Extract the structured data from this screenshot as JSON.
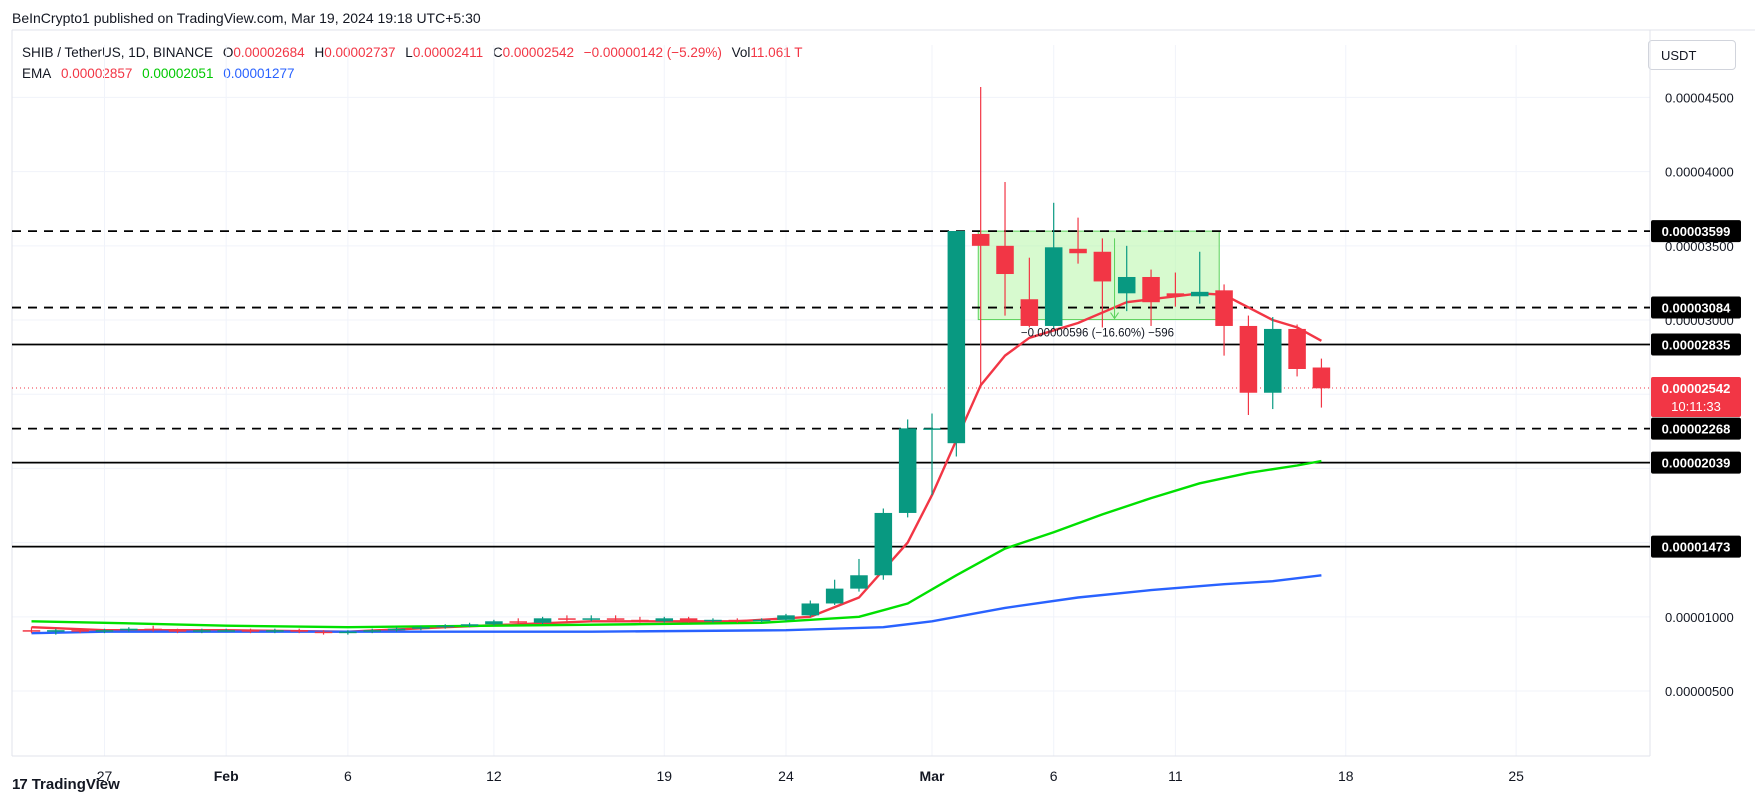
{
  "header": {
    "publisher_line": "BeInCrypto1 published on TradingView.com, Mar 19, 2024 19:18 UTC+5:30"
  },
  "legend": {
    "symbol": "SHIB / TetherUS, 1D, BINANCE",
    "o_label": "O",
    "o_value": "0.00002684",
    "h_label": "H",
    "h_value": "0.00002737",
    "l_label": "L",
    "l_value": "0.00002411",
    "c_label": "C",
    "c_value": "0.00002542",
    "change": "−0.00000142 (−5.29%)",
    "vol_label": "Vol",
    "vol_value": "11.061 T",
    "ema_label": "EMA",
    "ema_values": [
      "0.00002857",
      "0.00002051",
      "0.00001277"
    ]
  },
  "currency_button": "USDT",
  "footer": {
    "brand": "TradingView",
    "logo": "17"
  },
  "colors": {
    "up": "#089981",
    "down": "#f23645",
    "ema_fast": "#f23645",
    "ema_mid": "#00e000",
    "ema_slow": "#2962ff",
    "range_box": "#b6f5a8"
  },
  "chart_data": {
    "type": "candlestick",
    "symbol": "SHIB / TetherUS",
    "interval": "1D",
    "x_ticks": [
      {
        "day": 0,
        "label": "27"
      },
      {
        "day": 5,
        "label": "Feb"
      },
      {
        "day": 10,
        "label": "6"
      },
      {
        "day": 16,
        "label": "12"
      },
      {
        "day": 23,
        "label": "19"
      },
      {
        "day": 28,
        "label": "24"
      },
      {
        "day": 34,
        "label": "Mar"
      },
      {
        "day": 39,
        "label": "6"
      },
      {
        "day": 44,
        "label": "11"
      },
      {
        "day": 51,
        "label": "18"
      },
      {
        "day": 58,
        "label": "25"
      }
    ],
    "y_ticks": [
      5e-06,
      1e-05,
      1.5e-05,
      2e-05,
      2.5e-05,
      3e-05,
      3.5e-05,
      4e-05,
      4.5e-05
    ],
    "y_tick_labels": [
      "0.00000500",
      "0.00001000",
      "0.00001500",
      "0.00002000",
      "0.00002500",
      "0.00003000",
      "0.00003500",
      "0.00004000",
      "0.00004500"
    ],
    "ylim": [
      1.7e-06,
      4.55e-05
    ],
    "xlim": [
      -3.8,
      63.5
    ],
    "candles": [
      {
        "day": -3,
        "o": 9.1e-06,
        "h": 9.3e-06,
        "l": 8.9e-06,
        "c": 9e-06
      },
      {
        "day": -2,
        "o": 9e-06,
        "h": 9.2e-06,
        "l": 8.8e-06,
        "c": 9.1e-06
      },
      {
        "day": -1,
        "o": 9.1e-06,
        "h": 9.2e-06,
        "l": 8.9e-06,
        "c": 9e-06
      },
      {
        "day": 0,
        "o": 9e-06,
        "h": 9.2e-06,
        "l": 8.9e-06,
        "c": 9.1e-06
      },
      {
        "day": 1,
        "o": 9.1e-06,
        "h": 9.3e-06,
        "l": 9e-06,
        "c": 9.2e-06
      },
      {
        "day": 2,
        "o": 9.2e-06,
        "h": 9.4e-06,
        "l": 9e-06,
        "c": 9.1e-06
      },
      {
        "day": 3,
        "o": 9.1e-06,
        "h": 9.2e-06,
        "l": 8.9e-06,
        "c": 9e-06
      },
      {
        "day": 4,
        "o": 9e-06,
        "h": 9.2e-06,
        "l": 8.9e-06,
        "c": 9.1e-06
      },
      {
        "day": 5,
        "o": 9.1e-06,
        "h": 9.2e-06,
        "l": 9e-06,
        "c": 9.1e-06
      },
      {
        "day": 6,
        "o": 9.1e-06,
        "h": 9.2e-06,
        "l": 8.9e-06,
        "c": 9e-06
      },
      {
        "day": 7,
        "o": 9e-06,
        "h": 9.2e-06,
        "l": 8.9e-06,
        "c": 9.1e-06
      },
      {
        "day": 8,
        "o": 9.1e-06,
        "h": 9.2e-06,
        "l": 8.9e-06,
        "c": 9e-06
      },
      {
        "day": 9,
        "o": 9e-06,
        "h": 9.1e-06,
        "l": 8.8e-06,
        "c": 8.9e-06
      },
      {
        "day": 10,
        "o": 8.9e-06,
        "h": 9.1e-06,
        "l": 8.8e-06,
        "c": 9e-06
      },
      {
        "day": 11,
        "o": 9e-06,
        "h": 9.2e-06,
        "l": 8.9e-06,
        "c": 9.1e-06
      },
      {
        "day": 12,
        "o": 9.1e-06,
        "h": 9.3e-06,
        "l": 9e-06,
        "c": 9.2e-06
      },
      {
        "day": 13,
        "o": 9.2e-06,
        "h": 9.4e-06,
        "l": 9.1e-06,
        "c": 9.3e-06
      },
      {
        "day": 14,
        "o": 9.3e-06,
        "h": 9.5e-06,
        "l": 9.2e-06,
        "c": 9.4e-06
      },
      {
        "day": 15,
        "o": 9.4e-06,
        "h": 9.6e-06,
        "l": 9.3e-06,
        "c": 9.5e-06
      },
      {
        "day": 16,
        "o": 9.5e-06,
        "h": 9.8e-06,
        "l": 9.4e-06,
        "c": 9.7e-06
      },
      {
        "day": 17,
        "o": 9.7e-06,
        "h": 9.9e-06,
        "l": 9.5e-06,
        "c": 9.6e-06
      },
      {
        "day": 18,
        "o": 9.6e-06,
        "h": 1e-05,
        "l": 9.5e-06,
        "c": 9.9e-06
      },
      {
        "day": 19,
        "o": 9.9e-06,
        "h": 1.01e-05,
        "l": 9.7e-06,
        "c": 9.8e-06
      },
      {
        "day": 20,
        "o": 9.8e-06,
        "h": 1.01e-05,
        "l": 9.7e-06,
        "c": 9.9e-06
      },
      {
        "day": 21,
        "o": 9.9e-06,
        "h": 1.01e-05,
        "l": 9.7e-06,
        "c": 9.8e-06
      },
      {
        "day": 22,
        "o": 9.8e-06,
        "h": 1e-05,
        "l": 9.6e-06,
        "c": 9.7e-06
      },
      {
        "day": 23,
        "o": 9.7e-06,
        "h": 1e-05,
        "l": 9.6e-06,
        "c": 9.9e-06
      },
      {
        "day": 24,
        "o": 9.9e-06,
        "h": 1e-05,
        "l": 9.6e-06,
        "c": 9.7e-06
      },
      {
        "day": 25,
        "o": 9.7e-06,
        "h": 9.9e-06,
        "l": 9.6e-06,
        "c": 9.8e-06
      },
      {
        "day": 26,
        "o": 9.8e-06,
        "h": 9.9e-06,
        "l": 9.6e-06,
        "c": 9.7e-06
      },
      {
        "day": 27,
        "o": 9.7e-06,
        "h": 9.9e-06,
        "l": 9.6e-06,
        "c": 9.8e-06
      },
      {
        "day": 28,
        "o": 9.8e-06,
        "h": 1.02e-05,
        "l": 9.7e-06,
        "c": 1.01e-05
      },
      {
        "day": 29,
        "o": 1.01e-05,
        "h": 1.11e-05,
        "l": 1e-05,
        "c": 1.09e-05
      },
      {
        "day": 30,
        "o": 1.09e-05,
        "h": 1.25e-05,
        "l": 1.08e-05,
        "c": 1.19e-05
      },
      {
        "day": 31,
        "o": 1.19e-05,
        "h": 1.39e-05,
        "l": 1.17e-05,
        "c": 1.28e-05
      },
      {
        "day": 32,
        "o": 1.28e-05,
        "h": 1.73e-05,
        "l": 1.25e-05,
        "c": 1.7e-05
      },
      {
        "day": 33,
        "o": 1.7e-05,
        "h": 2.33e-05,
        "l": 1.67e-05,
        "c": 2.27e-05
      },
      {
        "day": 34,
        "o": 2.27e-05,
        "h": 2.37e-05,
        "l": 1.82e-05,
        "c": 2.27e-05
      },
      {
        "day": 35,
        "o": 2.17e-05,
        "h": 3.6e-05,
        "l": 2.08e-05,
        "c": 3.6e-05
      },
      {
        "day": 36,
        "o": 3.58e-05,
        "h": 4.57e-05,
        "l": 2.54e-05,
        "c": 3.5e-05
      },
      {
        "day": 37,
        "o": 3.5e-05,
        "h": 3.93e-05,
        "l": 3.03e-05,
        "c": 3.31e-05
      },
      {
        "day": 38,
        "o": 3.14e-05,
        "h": 3.42e-05,
        "l": 2.95e-05,
        "c": 2.96e-05
      },
      {
        "day": 39,
        "o": 2.96e-05,
        "h": 3.79e-05,
        "l": 2.94e-05,
        "c": 3.49e-05
      },
      {
        "day": 40,
        "o": 3.48e-05,
        "h": 3.69e-05,
        "l": 3.38e-05,
        "c": 3.45e-05
      },
      {
        "day": 41,
        "o": 3.46e-05,
        "h": 3.55e-05,
        "l": 2.95e-05,
        "c": 3.26e-05
      },
      {
        "day": 42,
        "o": 3.18e-05,
        "h": 3.5e-05,
        "l": 3.06e-05,
        "c": 3.29e-05
      },
      {
        "day": 43,
        "o": 3.29e-05,
        "h": 3.34e-05,
        "l": 2.96e-05,
        "c": 3.12e-05
      },
      {
        "day": 44,
        "o": 3.18e-05,
        "h": 3.32e-05,
        "l": 3.09e-05,
        "c": 3.16e-05
      },
      {
        "day": 45,
        "o": 3.16e-05,
        "h": 3.46e-05,
        "l": 3.11e-05,
        "c": 3.19e-05
      },
      {
        "day": 46,
        "o": 3.2e-05,
        "h": 3.24e-05,
        "l": 2.76e-05,
        "c": 2.96e-05
      },
      {
        "day": 47,
        "o": 2.96e-05,
        "h": 3.03e-05,
        "l": 2.36e-05,
        "c": 2.51e-05
      },
      {
        "day": 48,
        "o": 2.51e-05,
        "h": 3.02e-05,
        "l": 2.4e-05,
        "c": 2.94e-05
      },
      {
        "day": 49,
        "o": 2.94e-05,
        "h": 2.97e-05,
        "l": 2.62e-05,
        "c": 2.67e-05
      },
      {
        "day": 50,
        "o": 2.68e-05,
        "h": 2.74e-05,
        "l": 2.41e-05,
        "c": 2.54e-05
      }
    ],
    "ema": [
      {
        "name": "EMA",
        "values": [
          [
            -3,
            9.3e-06
          ],
          [
            0,
            9.1e-06
          ],
          [
            5,
            9.1e-06
          ],
          [
            10,
            9e-06
          ],
          [
            14,
            9.3e-06
          ],
          [
            20,
            9.7e-06
          ],
          [
            26,
            9.7e-06
          ],
          [
            29,
            1e-05
          ],
          [
            31,
            1.13e-05
          ],
          [
            33,
            1.5e-05
          ],
          [
            34,
            1.82e-05
          ],
          [
            35,
            2.19e-05
          ],
          [
            36,
            2.56e-05
          ],
          [
            37,
            2.76e-05
          ],
          [
            38,
            2.88e-05
          ],
          [
            40,
            2.98e-05
          ],
          [
            42,
            3.12e-05
          ],
          [
            44,
            3.16e-05
          ],
          [
            45,
            3.18e-05
          ],
          [
            46,
            3.17e-05
          ],
          [
            48,
            3e-05
          ],
          [
            49,
            2.95e-05
          ],
          [
            50,
            2.86e-05
          ]
        ]
      },
      {
        "name": "EMA",
        "values": [
          [
            -3,
            9.7e-06
          ],
          [
            0,
            9.6e-06
          ],
          [
            5,
            9.4e-06
          ],
          [
            10,
            9.3e-06
          ],
          [
            16,
            9.4e-06
          ],
          [
            22,
            9.5e-06
          ],
          [
            27,
            9.6e-06
          ],
          [
            31,
            1e-05
          ],
          [
            33,
            1.09e-05
          ],
          [
            35,
            1.28e-05
          ],
          [
            37,
            1.46e-05
          ],
          [
            39,
            1.57e-05
          ],
          [
            41,
            1.69e-05
          ],
          [
            43,
            1.8e-05
          ],
          [
            45,
            1.9e-05
          ],
          [
            47,
            1.97e-05
          ],
          [
            49,
            2.02e-05
          ],
          [
            50,
            2.05e-05
          ]
        ]
      },
      {
        "name": "EMA",
        "values": [
          [
            -3,
            8.9e-06
          ],
          [
            0,
            9e-06
          ],
          [
            10,
            9e-06
          ],
          [
            20,
            9e-06
          ],
          [
            28,
            9.1e-06
          ],
          [
            32,
            9.3e-06
          ],
          [
            34,
            9.7e-06
          ],
          [
            37,
            1.06e-05
          ],
          [
            40,
            1.13e-05
          ],
          [
            43,
            1.18e-05
          ],
          [
            46,
            1.22e-05
          ],
          [
            48,
            1.24e-05
          ],
          [
            50,
            1.28e-05
          ]
        ]
      }
    ],
    "horizontal_levels": [
      {
        "price": 3.599e-05,
        "label": "0.00003599",
        "style": "dashed"
      },
      {
        "price": 3.084e-05,
        "label": "0.00003084",
        "style": "dashed"
      },
      {
        "price": 2.835e-05,
        "label": "0.00002835",
        "style": "solid"
      },
      {
        "price": 2.268e-05,
        "label": "0.00002268",
        "style": "dashed"
      },
      {
        "price": 2.039e-05,
        "label": "0.00002039",
        "style": "solid"
      },
      {
        "price": 1.473e-05,
        "label": "0.00001473",
        "style": "solid"
      }
    ],
    "current_price": {
      "price": 2.542e-05,
      "label": "0.00002542",
      "countdown": "10:11:33"
    },
    "range_box": {
      "day_from": 35.9,
      "day_to": 45.8,
      "price_top": 3.599e-05,
      "price_bottom": 3.003e-05
    },
    "measure_annotation": "−0.00000596 (−16.60%) −596"
  }
}
